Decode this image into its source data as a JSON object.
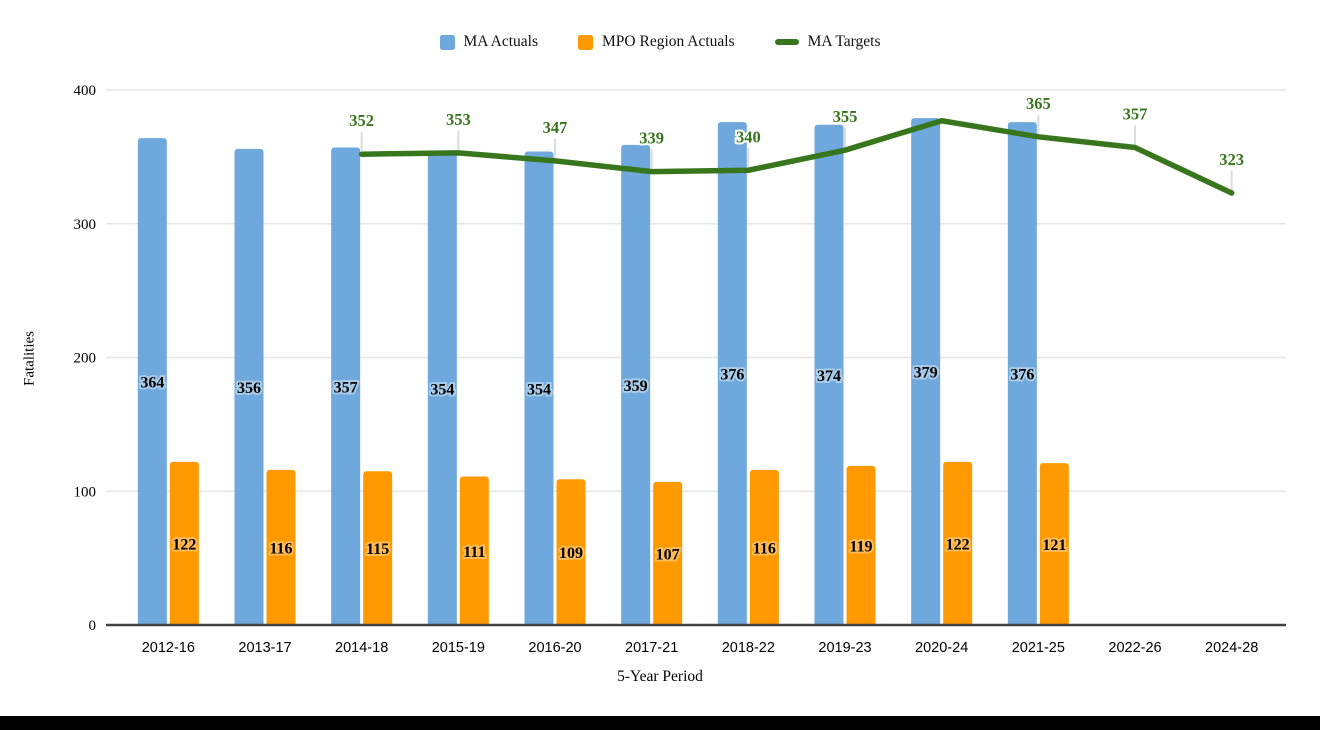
{
  "page": {
    "background": "#ffffff",
    "bottom_bar_color": "#000000"
  },
  "legend": [
    {
      "label": "MA Actuals",
      "color": "#6fa8dc",
      "marker": "square"
    },
    {
      "label": "MPO Region Actuals",
      "color": "#ff9900",
      "marker": "square"
    },
    {
      "label": "MA Targets",
      "color": "#38761d",
      "marker": "line"
    }
  ],
  "chart_data": {
    "type": "bar",
    "title": "",
    "xlabel": "5-Year Period",
    "ylabel": "Fatalities",
    "ylim": [
      0,
      400
    ],
    "yticks": [
      0,
      100,
      200,
      300,
      400
    ],
    "grid": true,
    "legend_position": "top-center",
    "categories": [
      "2012-16",
      "2013-17",
      "2014-18",
      "2015-19",
      "2016-20",
      "2017-21",
      "2018-22",
      "2019-23",
      "2020-24",
      "2021-25",
      "2022-26",
      "2024-28"
    ],
    "series": [
      {
        "name": "MA Actuals",
        "slug": "ma-actuals",
        "type": "bar",
        "color": "#6fa8dc",
        "label_halo": "#a8cbe9",
        "values": [
          364,
          356,
          357,
          354,
          354,
          359,
          376,
          374,
          379,
          376,
          null,
          null
        ]
      },
      {
        "name": "MPO Region Actuals",
        "slug": "mpo-region-actuals",
        "type": "bar",
        "color": "#ff9900",
        "label_halo": "#ffbb55",
        "values": [
          122,
          116,
          115,
          111,
          109,
          107,
          116,
          119,
          122,
          121,
          null,
          null
        ]
      },
      {
        "name": "MA Targets",
        "slug": "ma-targets",
        "type": "line",
        "color": "#38761d",
        "values": [
          null,
          null,
          352,
          353,
          347,
          339,
          340,
          355,
          377,
          365,
          357,
          323
        ],
        "labels": [
          null,
          null,
          "352",
          "353",
          "347",
          "339",
          "340",
          "355",
          null,
          "365",
          "357",
          "323"
        ]
      }
    ]
  }
}
